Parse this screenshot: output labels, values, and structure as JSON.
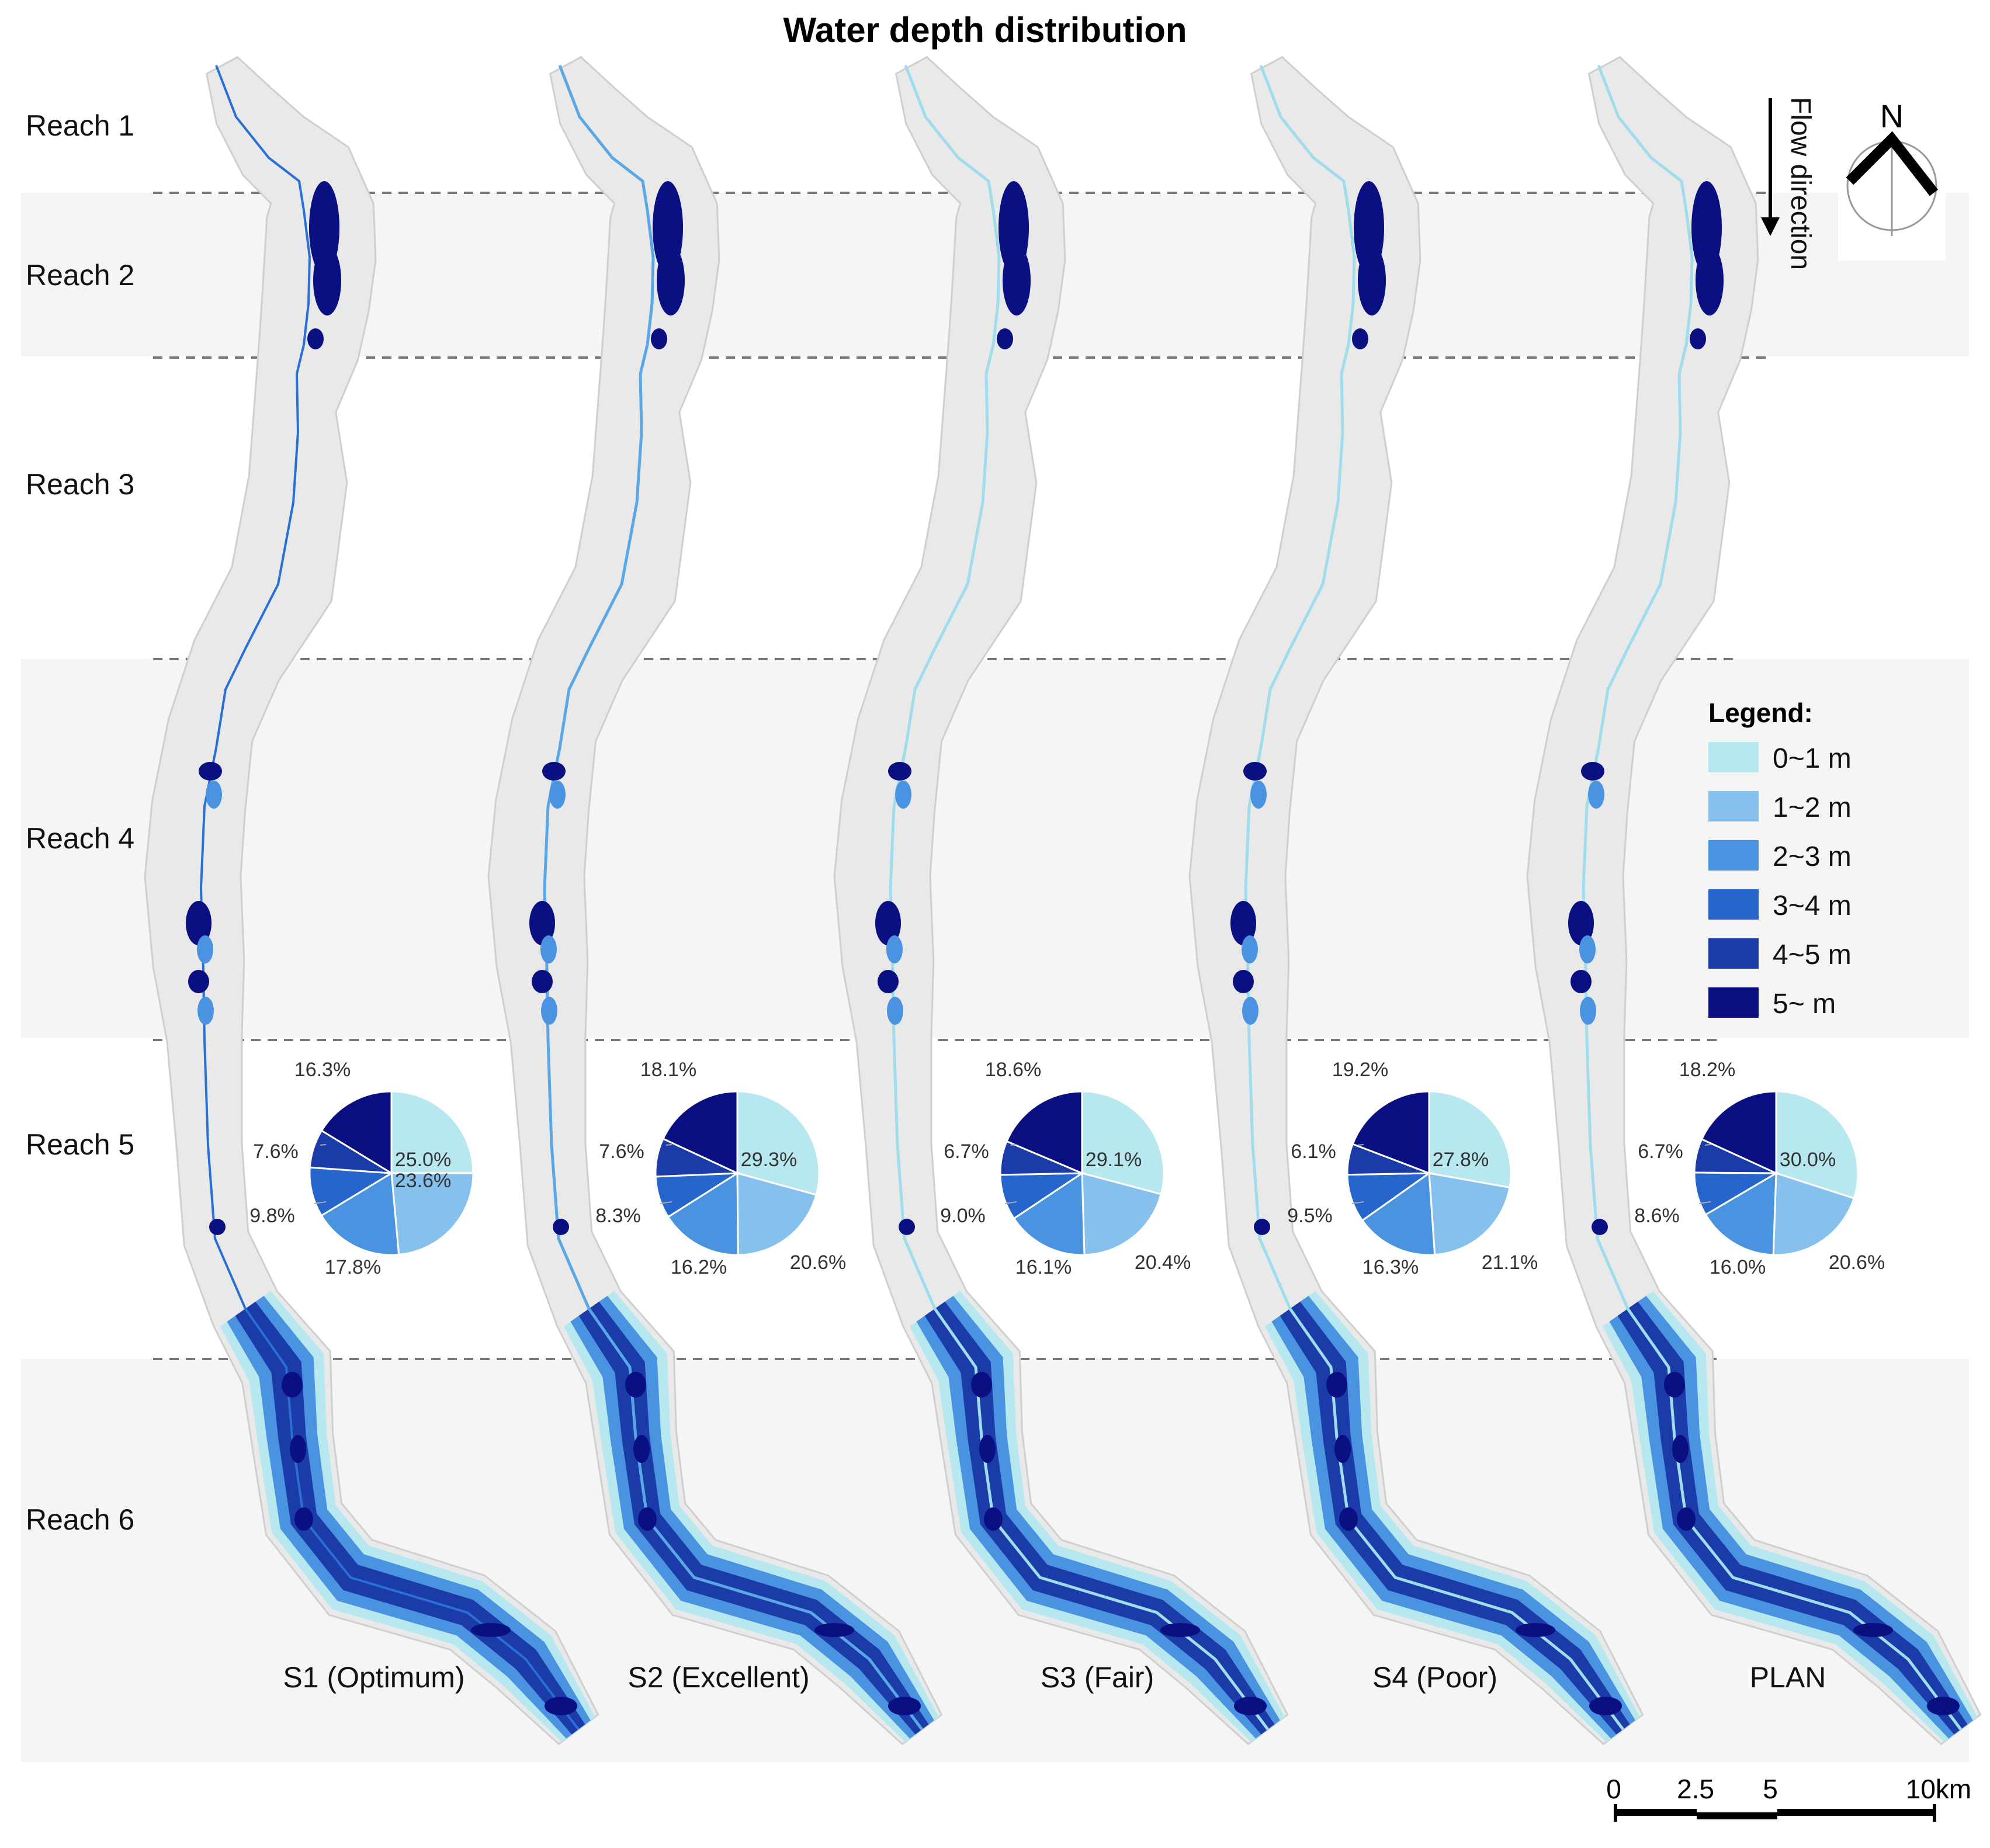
{
  "title": "Water depth distribution",
  "reaches": [
    "Reach 1",
    "Reach 2",
    "Reach 3",
    "Reach 4",
    "Reach 5",
    "Reach 6"
  ],
  "scenarios": [
    "S1 (Optimum)",
    "S2 (Excellent)",
    "S3 (Fair)",
    "S4 (Poor)",
    "PLAN"
  ],
  "legend": {
    "title": "Legend:",
    "items": [
      "0~1 m",
      "1~2 m",
      "2~3 m",
      "3~4 m",
      "4~5 m",
      "5~ m"
    ],
    "colors": [
      "#b8e8ef",
      "#86c0ec",
      "#4a93e0",
      "#2565cc",
      "#1b3ba8",
      "#0a0f82"
    ]
  },
  "flow_direction": "Flow direction",
  "north": "N",
  "scale_bar": {
    "ticks": [
      "0",
      "2.5",
      "5",
      "10km"
    ]
  },
  "pies": [
    {
      "scenario": "S1 (Optimum)",
      "values": [
        25.0,
        23.6,
        17.8,
        9.8,
        7.6,
        16.3
      ],
      "labels": [
        "25.0%",
        "23.6%",
        "17.8%",
        "9.8%",
        "7.6%",
        "16.3%"
      ]
    },
    {
      "scenario": "S2 (Excellent)",
      "values": [
        29.3,
        20.6,
        16.2,
        8.3,
        7.6,
        18.1
      ],
      "labels": [
        "29.3%",
        "20.6%",
        "16.2%",
        "8.3%",
        "7.6%",
        "18.1%"
      ]
    },
    {
      "scenario": "S3 (Fair)",
      "values": [
        29.1,
        20.4,
        16.1,
        9.0,
        6.7,
        18.6
      ],
      "labels": [
        "29.1%",
        "20.4%",
        "16.1%",
        "9.0%",
        "6.7%",
        "18.6%"
      ]
    },
    {
      "scenario": "S4 (Poor)",
      "values": [
        27.8,
        21.1,
        16.3,
        9.5,
        6.1,
        19.2
      ],
      "labels": [
        "27.8%",
        "21.1%",
        "16.3%",
        "9.5%",
        "6.1%",
        "19.2%"
      ]
    },
    {
      "scenario": "PLAN",
      "values": [
        30.0,
        20.6,
        16.0,
        8.6,
        6.7,
        18.2
      ],
      "labels": [
        "30.0%",
        "20.6%",
        "16.0%",
        "8.6%",
        "6.7%",
        "18.2%"
      ]
    }
  ]
}
